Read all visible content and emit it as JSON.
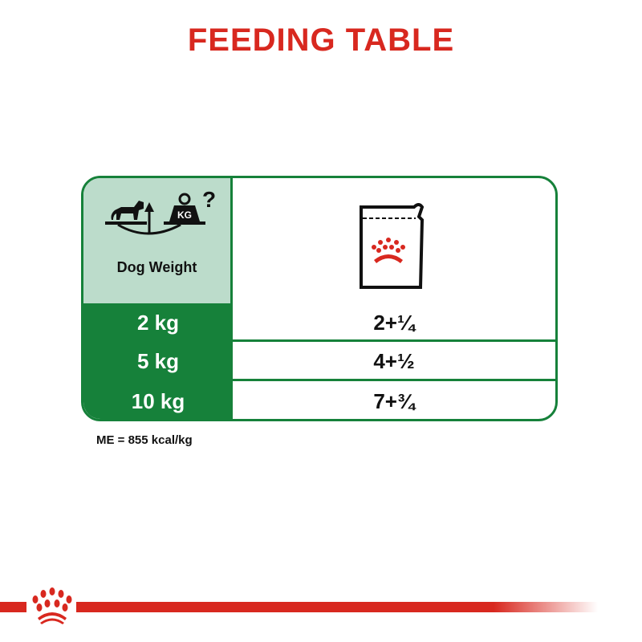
{
  "title": "FEEDING TABLE",
  "header": {
    "weight_label": "Dog Weight",
    "weight_icon": "dog-scale-kg-icon",
    "kg_text": "KG",
    "question_mark": "?",
    "pouch_icon": "pouch-icon"
  },
  "rows": [
    {
      "weight": "2 kg",
      "pouches": "2+¼"
    },
    {
      "weight": "5 kg",
      "pouches": "4+½"
    },
    {
      "weight": "10 kg",
      "pouches": "7+¾"
    }
  ],
  "note": "ME = 855 kcal/kg",
  "colors": {
    "brand_red": "#d8281f",
    "green": "#16813a",
    "light_green": "#bcdccb"
  }
}
